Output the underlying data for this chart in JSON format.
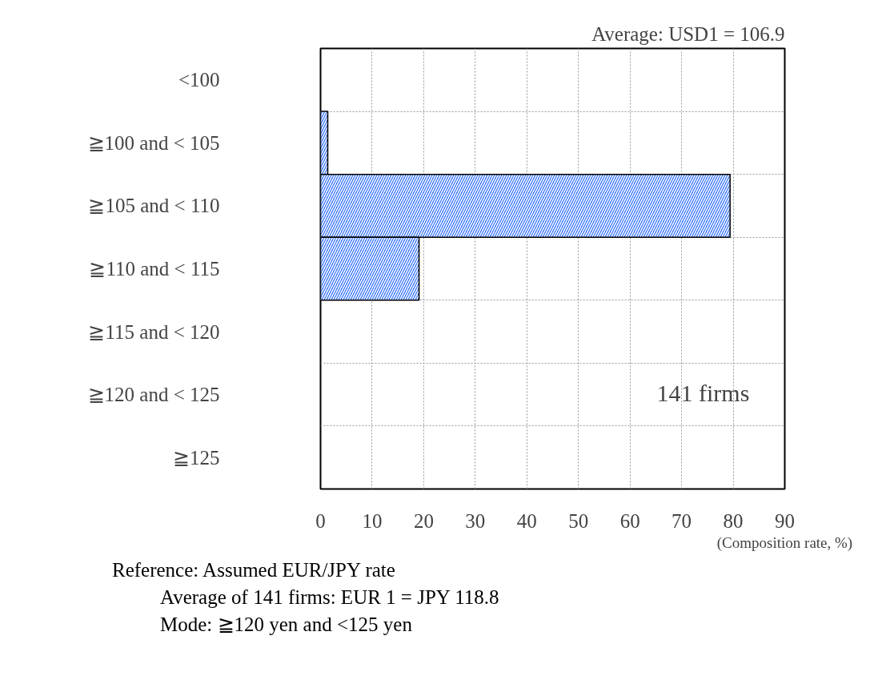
{
  "chart_data": {
    "type": "bar",
    "orientation": "horizontal",
    "title": "Average: USD1 = 106.9",
    "categories": [
      "<100",
      "≧100 and < 105",
      "≧105 and < 110",
      "≧110 and < 115",
      "≧115 and < 120",
      "≧120 and < 125",
      "≧125"
    ],
    "values": [
      0,
      1.4,
      79.4,
      19.1,
      0,
      0,
      0
    ],
    "color": "#2f6fff",
    "xlim": [
      0,
      90
    ],
    "xticks": [
      0,
      10,
      20,
      30,
      40,
      50,
      60,
      70,
      80,
      90
    ],
    "xlabel": "(Composition rate, %)",
    "grid": true,
    "annotations": [
      "141 firms",
      "Reference: Assumed EUR/JPY rate",
      "Average of 141 firms: EUR 1 = JPY 118.8",
      "Mode: ≧120 yen and <125 yen"
    ]
  }
}
